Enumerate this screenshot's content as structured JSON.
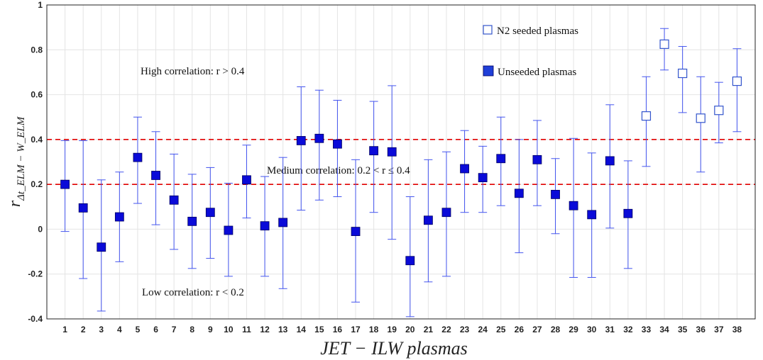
{
  "chart_data": {
    "type": "scatter",
    "xlabel": "JET − ILW plasmas",
    "ylabel": "r_{Δt_ELM − W_ELM}",
    "xlim": [
      0,
      39
    ],
    "ylim": [
      -0.4,
      1
    ],
    "x_ticks": [
      1,
      2,
      3,
      4,
      5,
      6,
      7,
      8,
      9,
      10,
      11,
      12,
      13,
      14,
      15,
      16,
      17,
      18,
      19,
      20,
      21,
      22,
      23,
      24,
      25,
      26,
      27,
      28,
      29,
      30,
      31,
      32,
      33,
      34,
      35,
      36,
      37,
      38
    ],
    "y_ticks": [
      -0.4,
      -0.2,
      0,
      0.2,
      0.4,
      0.6,
      0.8,
      1
    ],
    "y_tick_labels": [
      "-0.4",
      "-0.2",
      "0",
      "0.2",
      "0.4",
      "0.6",
      "0.8",
      "1"
    ],
    "grid": true,
    "legend_position": "top-right",
    "series": [
      {
        "name": "Unseeded plasmas",
        "marker": "filled-square",
        "color": "#0000ee",
        "x": [
          1,
          2,
          3,
          4,
          5,
          6,
          7,
          8,
          9,
          10,
          11,
          12,
          13,
          14,
          15,
          16,
          17,
          18,
          19,
          20,
          21,
          22,
          23,
          24,
          25,
          26,
          27,
          28,
          29,
          30,
          31,
          32
        ],
        "y": [
          0.2,
          0.095,
          -0.08,
          0.055,
          0.32,
          0.24,
          0.13,
          0.035,
          0.075,
          -0.005,
          0.22,
          0.015,
          0.03,
          0.395,
          0.405,
          0.38,
          -0.01,
          0.35,
          0.345,
          -0.14,
          0.04,
          0.075,
          0.27,
          0.23,
          0.315,
          0.16,
          0.31,
          0.155,
          0.105,
          0.065,
          0.305,
          0.07
        ],
        "lower": [
          -0.01,
          -0.22,
          -0.365,
          -0.145,
          0.115,
          0.02,
          -0.09,
          -0.175,
          -0.13,
          -0.21,
          0.05,
          -0.21,
          -0.265,
          0.085,
          0.13,
          0.145,
          -0.325,
          0.075,
          -0.045,
          -0.39,
          -0.235,
          -0.21,
          0.075,
          0.075,
          0.105,
          -0.105,
          0.105,
          -0.02,
          -0.215,
          -0.215,
          0.005,
          -0.175
        ],
        "upper": [
          0.395,
          0.395,
          0.22,
          0.255,
          0.5,
          0.435,
          0.335,
          0.245,
          0.275,
          0.205,
          0.375,
          0.235,
          0.32,
          0.635,
          0.62,
          0.575,
          0.31,
          0.57,
          0.64,
          0.145,
          0.31,
          0.345,
          0.44,
          0.37,
          0.5,
          0.4,
          0.485,
          0.315,
          0.405,
          0.34,
          0.555,
          0.305
        ]
      },
      {
        "name": "N2 seeded plasmas",
        "marker": "open-square",
        "color": "#3355cc",
        "x": [
          33,
          34,
          35,
          36,
          37,
          38
        ],
        "y": [
          0.505,
          0.825,
          0.695,
          0.495,
          0.53,
          0.66
        ],
        "lower": [
          0.28,
          0.71,
          0.52,
          0.255,
          0.385,
          0.435
        ],
        "upper": [
          0.68,
          0.895,
          0.815,
          0.68,
          0.655,
          0.805
        ]
      }
    ],
    "reference_lines": [
      {
        "y": 0.4,
        "color": "#e00000",
        "style": "dashed"
      },
      {
        "y": 0.2,
        "color": "#e00000",
        "style": "dashed"
      }
    ],
    "annotations": [
      {
        "text": "High correlation: r > 0.4"
      },
      {
        "text": "Medium correlation: 0.2 < r ≤ 0.4"
      },
      {
        "text": "Low correlation: r < 0.2"
      }
    ]
  }
}
